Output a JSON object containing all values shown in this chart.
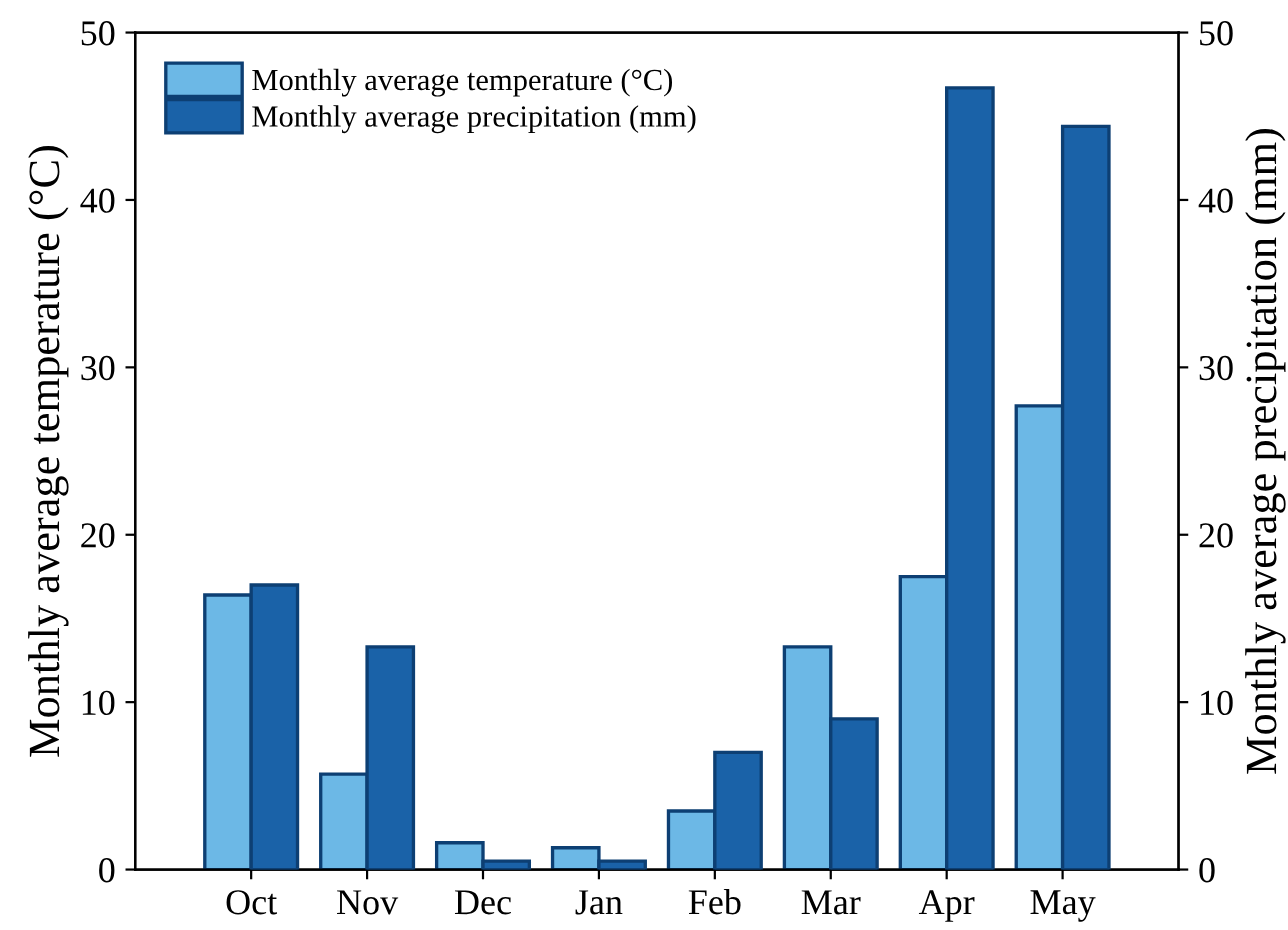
{
  "chart_data": {
    "type": "bar",
    "ylabel": "Monthly average temperature (°C)",
    "y2label": "Monthly average precipitation (mm)",
    "categories": [
      "Oct",
      "Nov",
      "Dec",
      "Jan",
      "Feb",
      "Mar",
      "Apr",
      "May"
    ],
    "series": [
      {
        "name": "Monthly average temperature (°C)",
        "color": "#6cb8e6",
        "values": [
          16.4,
          5.7,
          1.6,
          1.3,
          3.5,
          13.3,
          17.5,
          27.7
        ]
      },
      {
        "name": "Monthly average precipitation (mm)",
        "color": "#1a62a8",
        "axis": "y2",
        "values": [
          17.0,
          13.3,
          0.5,
          0.5,
          7.0,
          9.0,
          46.7,
          44.4
        ]
      }
    ],
    "ylim": [
      0,
      50
    ],
    "yticks": [
      0,
      10,
      20,
      30,
      40,
      50
    ],
    "y2lim": [
      0,
      50
    ],
    "y2ticks": [
      0,
      10,
      20,
      30,
      40,
      50
    ],
    "legend": "top left",
    "grid": false
  }
}
